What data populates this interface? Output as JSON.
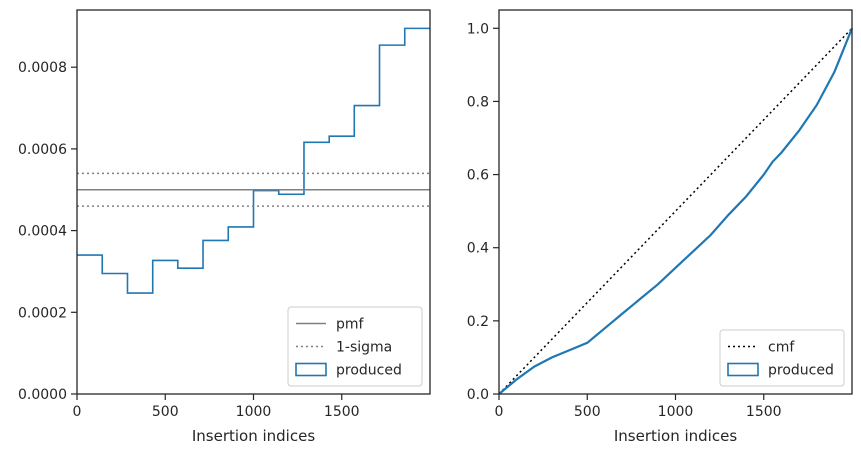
{
  "chart_data": [
    {
      "type": "histogram",
      "xlabel": "Insertion indices",
      "ylabel": "",
      "xlim": [
        0,
        2000
      ],
      "ylim": [
        0,
        0.00094
      ],
      "xticks": [
        0,
        500,
        1000,
        1500
      ],
      "xtick_labels": [
        "0",
        "500",
        "1000",
        "1500"
      ],
      "yticks": [
        0,
        0.0002,
        0.0004,
        0.0006,
        0.0008
      ],
      "ytick_labels": [
        "0.0000",
        "0.0002",
        "0.0004",
        "0.0006",
        "0.0008"
      ],
      "grid": false,
      "legend_position": "lower-right",
      "bin_edges": [
        0,
        143,
        286,
        429,
        571,
        714,
        857,
        1000,
        1143,
        1286,
        1429,
        1571,
        1714,
        1857,
        2000
      ],
      "series": [
        {
          "name": "produced",
          "kind": "step-histogram",
          "color": "#1f77b4",
          "values": [
            0.00034,
            0.000295,
            0.000247,
            0.000327,
            0.000308,
            0.000376,
            0.000409,
            0.000498,
            0.000489,
            0.000616,
            0.000631,
            0.000706,
            0.000854,
            0.000895
          ]
        },
        {
          "name": "pmf",
          "kind": "hline",
          "color": "#808080",
          "style": "solid",
          "value": 0.0005
        },
        {
          "name": "1-sigma",
          "kind": "hline",
          "color": "#808080",
          "style": "dotted",
          "values": [
            0.00054,
            0.00046
          ]
        }
      ]
    },
    {
      "type": "line",
      "xlabel": "Insertion indices",
      "ylabel": "",
      "xlim": [
        0,
        2000
      ],
      "ylim": [
        0,
        1.05
      ],
      "xticks": [
        0,
        500,
        1000,
        1500
      ],
      "xtick_labels": [
        "0",
        "500",
        "1000",
        "1500"
      ],
      "yticks": [
        0,
        0.2,
        0.4,
        0.6,
        0.8,
        1.0
      ],
      "ytick_labels": [
        "0.0",
        "0.2",
        "0.4",
        "0.6",
        "0.8",
        "1.0"
      ],
      "grid": false,
      "legend_position": "lower-right",
      "series": [
        {
          "name": "cmf",
          "kind": "line",
          "color": "#000000",
          "style": "dotted",
          "x": [
            0,
            2000
          ],
          "y": [
            0,
            1.0
          ]
        },
        {
          "name": "produced",
          "kind": "step-cdf",
          "color": "#1f77b4",
          "x": [
            0,
            100,
            200,
            300,
            400,
            500,
            550,
            600,
            700,
            800,
            900,
            1000,
            1100,
            1200,
            1300,
            1400,
            1500,
            1550,
            1600,
            1700,
            1800,
            1900,
            1950,
            2000
          ],
          "y": [
            0,
            0.04,
            0.075,
            0.1,
            0.12,
            0.14,
            0.16,
            0.18,
            0.22,
            0.26,
            0.3,
            0.345,
            0.39,
            0.435,
            0.49,
            0.54,
            0.6,
            0.635,
            0.66,
            0.72,
            0.79,
            0.88,
            0.94,
            1.0
          ]
        }
      ]
    }
  ]
}
